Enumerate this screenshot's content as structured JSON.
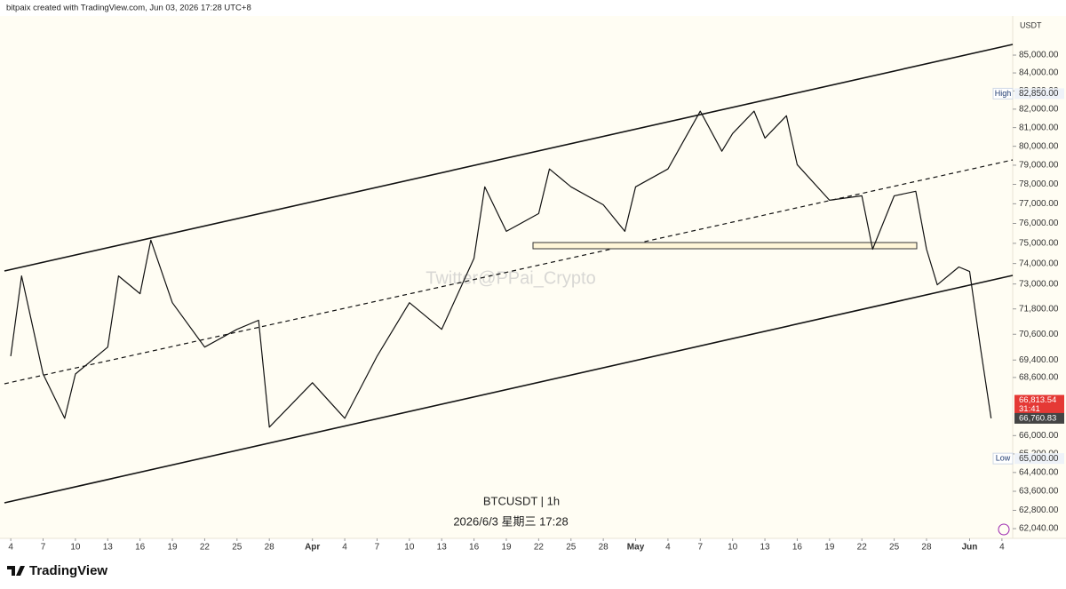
{
  "header": "bitpaix created with TradingView.com, Jun 03, 2026 17:28 UTC+8",
  "footer": {
    "logo_text": "TradingView"
  },
  "chart_data": {
    "type": "line",
    "symbol": "BTCUSDT | 1h",
    "timestamp": "2026/6/3 星期三 17:28",
    "watermark": "Twitter@PPai_Crypto",
    "currency": "USDT",
    "log_scale": true,
    "grid": false,
    "x": [
      "2026-03-04",
      "2026-03-05",
      "2026-03-07",
      "2026-03-09",
      "2026-03-10",
      "2026-03-13",
      "2026-03-14",
      "2026-03-16",
      "2026-03-17",
      "2026-03-19",
      "2026-03-22",
      "2026-03-25",
      "2026-03-27",
      "2026-03-28",
      "2026-04-01",
      "2026-04-04",
      "2026-04-07",
      "2026-04-10",
      "2026-04-13",
      "2026-04-16",
      "2026-04-17",
      "2026-04-19",
      "2026-04-22",
      "2026-04-23",
      "2026-04-25",
      "2026-04-28",
      "2026-04-30",
      "2026-05-01",
      "2026-05-04",
      "2026-05-07",
      "2026-05-09",
      "2026-05-10",
      "2026-05-12",
      "2026-05-13",
      "2026-05-15",
      "2026-05-16",
      "2026-05-19",
      "2026-05-22",
      "2026-05-23",
      "2026-05-25",
      "2026-05-27",
      "2026-05-28",
      "2026-05-29",
      "2026-05-31",
      "2026-06-01",
      "2026-06-02",
      "2026-06-03"
    ],
    "series": [
      {
        "name": "BTCUSDT",
        "color": "#111111",
        "values": [
          69580,
          73390,
          68760,
          66760,
          68760,
          70000,
          73390,
          72530,
          75160,
          72100,
          70000,
          70830,
          71260,
          66370,
          68360,
          66760,
          69580,
          72100,
          70830,
          74260,
          77870,
          75600,
          76500,
          78800,
          77870,
          76950,
          75600,
          77870,
          78800,
          81890,
          79740,
          80680,
          81890,
          80440,
          81640,
          79030,
          77180,
          77410,
          74710,
          77410,
          77640,
          74710,
          72960,
          73830,
          73610,
          70000,
          66760
        ]
      }
    ],
    "xlim": [
      "2026-03-03",
      "2026-06-05"
    ],
    "xticks": [
      {
        "value": "2026-03-04",
        "label": "4"
      },
      {
        "value": "2026-03-07",
        "label": "7"
      },
      {
        "value": "2026-03-10",
        "label": "10"
      },
      {
        "value": "2026-03-13",
        "label": "13"
      },
      {
        "value": "2026-03-16",
        "label": "16"
      },
      {
        "value": "2026-03-19",
        "label": "19"
      },
      {
        "value": "2026-03-22",
        "label": "22"
      },
      {
        "value": "2026-03-25",
        "label": "25"
      },
      {
        "value": "2026-03-28",
        "label": "28"
      },
      {
        "value": "2026-04-01",
        "label": "Apr"
      },
      {
        "value": "2026-04-04",
        "label": "4"
      },
      {
        "value": "2026-04-07",
        "label": "7"
      },
      {
        "value": "2026-04-10",
        "label": "10"
      },
      {
        "value": "2026-04-13",
        "label": "13"
      },
      {
        "value": "2026-04-16",
        "label": "16"
      },
      {
        "value": "2026-04-19",
        "label": "19"
      },
      {
        "value": "2026-04-22",
        "label": "22"
      },
      {
        "value": "2026-04-25",
        "label": "25"
      },
      {
        "value": "2026-04-28",
        "label": "28"
      },
      {
        "value": "2026-05-01",
        "label": "May"
      },
      {
        "value": "2026-05-04",
        "label": "4"
      },
      {
        "value": "2026-05-07",
        "label": "7"
      },
      {
        "value": "2026-05-10",
        "label": "10"
      },
      {
        "value": "2026-05-13",
        "label": "13"
      },
      {
        "value": "2026-05-16",
        "label": "16"
      },
      {
        "value": "2026-05-19",
        "label": "19"
      },
      {
        "value": "2026-05-22",
        "label": "22"
      },
      {
        "value": "2026-05-25",
        "label": "25"
      },
      {
        "value": "2026-05-28",
        "label": "28"
      },
      {
        "value": "2026-06-01",
        "label": "Jun"
      },
      {
        "value": "2026-06-04",
        "label": "4"
      }
    ],
    "ylim": [
      61640,
      87240
    ],
    "yticks": [
      {
        "value": 85000,
        "label": "85,000.00"
      },
      {
        "value": 84000,
        "label": "84,000.00"
      },
      {
        "value": 83000,
        "label": "83,000.00"
      },
      {
        "value": 82000,
        "label": "82,000.00"
      },
      {
        "value": 81000,
        "label": "81,000.00"
      },
      {
        "value": 80000,
        "label": "80,000.00"
      },
      {
        "value": 79000,
        "label": "79,000.00"
      },
      {
        "value": 78000,
        "label": "78,000.00"
      },
      {
        "value": 77000,
        "label": "77,000.00"
      },
      {
        "value": 76000,
        "label": "76,000.00"
      },
      {
        "value": 75000,
        "label": "75,000.00"
      },
      {
        "value": 74000,
        "label": "74,000.00"
      },
      {
        "value": 73000,
        "label": "73,000.00"
      },
      {
        "value": 71800,
        "label": "71,800.00"
      },
      {
        "value": 70600,
        "label": "70,600.00"
      },
      {
        "value": 69400,
        "label": "69,400.00"
      },
      {
        "value": 68600,
        "label": "68,600.00"
      },
      {
        "value": 66000,
        "label": "66,000.00"
      },
      {
        "value": 65200,
        "label": "65,200.00"
      },
      {
        "value": 64400,
        "label": "64,400.00"
      },
      {
        "value": 63600,
        "label": "63,600.00"
      },
      {
        "value": 62800,
        "label": "62,800.00"
      },
      {
        "value": 62040,
        "label": "62,040.00"
      }
    ],
    "markers": [
      {
        "name": "High",
        "value": 82850,
        "label": "82,850.00"
      },
      {
        "name": "Low",
        "value": 65000,
        "label": "65,000.00"
      }
    ],
    "last_price": {
      "value": 66813.54,
      "label": "66,813.54",
      "countdown": "31:41",
      "color": "#e53935"
    },
    "mark_price": {
      "value": 66760.83,
      "label": "66,760.83",
      "color": "#444444"
    }
  }
}
